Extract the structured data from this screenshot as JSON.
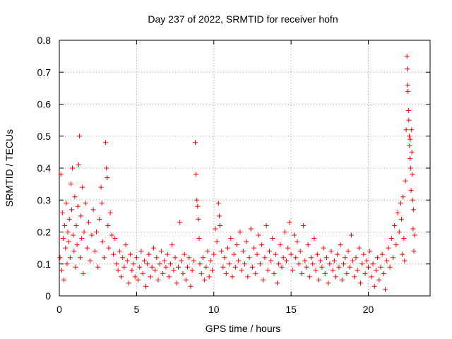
{
  "chart_data": {
    "type": "scatter",
    "title": "Day 237 of 2022, SRMTID for receiver hofn",
    "xlabel": "GPS time / hours",
    "ylabel": "SRMTID / TECUs",
    "xlim": [
      0,
      24
    ],
    "ylim": [
      0,
      0.8
    ],
    "xticks": [
      0,
      5,
      10,
      15,
      20
    ],
    "xtick_labels": [
      "0",
      "5",
      "10",
      "15",
      "20"
    ],
    "yticks": [
      0,
      0.1,
      0.2,
      0.3,
      0.4,
      0.5,
      0.6,
      0.7,
      0.8
    ],
    "ytick_labels": [
      "0",
      "0.1",
      "0.2",
      "0.3",
      "0.4",
      "0.5",
      "0.6",
      "0.7",
      "0.8"
    ],
    "grid": true,
    "marker": "+",
    "marker_color": "#ff0000",
    "series": [
      {
        "name": "SRMTID",
        "points": [
          [
            0.05,
            0.12
          ],
          [
            0.1,
            0.38
          ],
          [
            0.15,
            0.08
          ],
          [
            0.2,
            0.26
          ],
          [
            0.25,
            0.18
          ],
          [
            0.3,
            0.05
          ],
          [
            0.35,
            0.22
          ],
          [
            0.4,
            0.15
          ],
          [
            0.45,
            0.29
          ],
          [
            0.5,
            0.1
          ],
          [
            0.55,
            0.2
          ],
          [
            0.6,
            0.17
          ],
          [
            0.65,
            0.24
          ],
          [
            0.7,
            0.12
          ],
          [
            0.75,
            0.35
          ],
          [
            0.8,
            0.27
          ],
          [
            0.85,
            0.4
          ],
          [
            0.9,
            0.19
          ],
          [
            0.95,
            0.14
          ],
          [
            1.0,
            0.31
          ],
          [
            1.05,
            0.09
          ],
          [
            1.1,
            0.22
          ],
          [
            1.15,
            0.16
          ],
          [
            1.2,
            0.28
          ],
          [
            1.25,
            0.41
          ],
          [
            1.3,
            0.5
          ],
          [
            1.35,
            0.12
          ],
          [
            1.4,
            0.25
          ],
          [
            1.45,
            0.18
          ],
          [
            1.5,
            0.34
          ],
          [
            1.55,
            0.07
          ],
          [
            1.6,
            0.2
          ],
          [
            1.7,
            0.29
          ],
          [
            1.8,
            0.15
          ],
          [
            1.9,
            0.23
          ],
          [
            2.0,
            0.11
          ],
          [
            2.1,
            0.19
          ],
          [
            2.2,
            0.27
          ],
          [
            2.3,
            0.14
          ],
          [
            2.4,
            0.2
          ],
          [
            2.5,
            0.09
          ],
          [
            2.6,
            0.24
          ],
          [
            2.7,
            0.34
          ],
          [
            2.75,
            0.29
          ],
          [
            2.8,
            0.17
          ],
          [
            2.9,
            0.12
          ],
          [
            3.0,
            0.48
          ],
          [
            3.05,
            0.4
          ],
          [
            3.1,
            0.37
          ],
          [
            3.15,
            0.22
          ],
          [
            3.2,
            0.15
          ],
          [
            3.3,
            0.26
          ],
          [
            3.4,
            0.19
          ],
          [
            3.5,
            0.13
          ],
          [
            3.6,
            0.18
          ],
          [
            3.7,
            0.1
          ],
          [
            3.8,
            0.08
          ],
          [
            3.9,
            0.14
          ],
          [
            4.0,
            0.06
          ],
          [
            4.1,
            0.12
          ],
          [
            4.2,
            0.09
          ],
          [
            4.3,
            0.16
          ],
          [
            4.4,
            0.11
          ],
          [
            4.5,
            0.04
          ],
          [
            4.6,
            0.13
          ],
          [
            4.7,
            0.08
          ],
          [
            4.8,
            0.1
          ],
          [
            4.9,
            0.06
          ],
          [
            5.0,
            0.12
          ],
          [
            5.1,
            0.05
          ],
          [
            5.2,
            0.09
          ],
          [
            5.3,
            0.14
          ],
          [
            5.4,
            0.07
          ],
          [
            5.5,
            0.11
          ],
          [
            5.6,
            0.03
          ],
          [
            5.7,
            0.1
          ],
          [
            5.8,
            0.13
          ],
          [
            5.9,
            0.06
          ],
          [
            6.0,
            0.09
          ],
          [
            6.1,
            0.15
          ],
          [
            6.2,
            0.08
          ],
          [
            6.3,
            0.12
          ],
          [
            6.4,
            0.05
          ],
          [
            6.5,
            0.1
          ],
          [
            6.6,
            0.14
          ],
          [
            6.7,
            0.07
          ],
          [
            6.8,
            0.11
          ],
          [
            6.9,
            0.09
          ],
          [
            7.0,
            0.13
          ],
          [
            7.1,
            0.06
          ],
          [
            7.2,
            0.1
          ],
          [
            7.3,
            0.16
          ],
          [
            7.4,
            0.08
          ],
          [
            7.5,
            0.12
          ],
          [
            7.6,
            0.04
          ],
          [
            7.7,
            0.09
          ],
          [
            7.8,
            0.23
          ],
          [
            7.9,
            0.11
          ],
          [
            8.0,
            0.07
          ],
          [
            8.1,
            0.13
          ],
          [
            8.2,
            0.05
          ],
          [
            8.3,
            0.09
          ],
          [
            8.4,
            0.12
          ],
          [
            8.5,
            0.03
          ],
          [
            8.6,
            0.08
          ],
          [
            8.7,
            0.11
          ],
          [
            8.8,
            0.48
          ],
          [
            8.85,
            0.38
          ],
          [
            8.9,
            0.3
          ],
          [
            8.95,
            0.28
          ],
          [
            9.0,
            0.24
          ],
          [
            9.05,
            0.18
          ],
          [
            9.1,
            0.1
          ],
          [
            9.2,
            0.07
          ],
          [
            9.3,
            0.12
          ],
          [
            9.4,
            0.05
          ],
          [
            9.5,
            0.09
          ],
          [
            9.6,
            0.14
          ],
          [
            9.7,
            0.06
          ],
          [
            9.8,
            0.11
          ],
          [
            9.9,
            0.08
          ],
          [
            10.0,
            0.13
          ],
          [
            10.1,
            0.21
          ],
          [
            10.2,
            0.17
          ],
          [
            10.3,
            0.29
          ],
          [
            10.35,
            0.25
          ],
          [
            10.4,
            0.22
          ],
          [
            10.5,
            0.14
          ],
          [
            10.6,
            0.09
          ],
          [
            10.7,
            0.12
          ],
          [
            10.8,
            0.07
          ],
          [
            10.9,
            0.15
          ],
          [
            11.0,
            0.1
          ],
          [
            11.1,
            0.18
          ],
          [
            11.2,
            0.06
          ],
          [
            11.3,
            0.13
          ],
          [
            11.4,
            0.09
          ],
          [
            11.5,
            0.16
          ],
          [
            11.6,
            0.11
          ],
          [
            11.7,
            0.2
          ],
          [
            11.8,
            0.08
          ],
          [
            11.9,
            0.14
          ],
          [
            12.0,
            0.1
          ],
          [
            12.1,
            0.17
          ],
          [
            12.2,
            0.06
          ],
          [
            12.3,
            0.12
          ],
          [
            12.4,
            0.21
          ],
          [
            12.5,
            0.09
          ],
          [
            12.6,
            0.15
          ],
          [
            12.7,
            0.07
          ],
          [
            12.8,
            0.13
          ],
          [
            12.9,
            0.19
          ],
          [
            13.0,
            0.1
          ],
          [
            13.1,
            0.16
          ],
          [
            13.2,
            0.05
          ],
          [
            13.3,
            0.12
          ],
          [
            13.4,
            0.22
          ],
          [
            13.5,
            0.08
          ],
          [
            13.6,
            0.14
          ],
          [
            13.7,
            0.11
          ],
          [
            13.8,
            0.18
          ],
          [
            13.9,
            0.07
          ],
          [
            14.0,
            0.13
          ],
          [
            14.1,
            0.04
          ],
          [
            14.2,
            0.1
          ],
          [
            14.3,
            0.16
          ],
          [
            14.4,
            0.09
          ],
          [
            14.5,
            0.12
          ],
          [
            14.6,
            0.2
          ],
          [
            14.7,
            0.11
          ],
          [
            14.8,
            0.15
          ],
          [
            14.9,
            0.23
          ],
          [
            15.0,
            0.13
          ],
          [
            15.1,
            0.08
          ],
          [
            15.2,
            0.19
          ],
          [
            15.3,
            0.12
          ],
          [
            15.4,
            0.17
          ],
          [
            15.5,
            0.1
          ],
          [
            15.6,
            0.14
          ],
          [
            15.7,
            0.07
          ],
          [
            15.8,
            0.22
          ],
          [
            15.9,
            0.11
          ],
          [
            16.0,
            0.09
          ],
          [
            16.1,
            0.16
          ],
          [
            16.2,
            0.06
          ],
          [
            16.3,
            0.12
          ],
          [
            16.4,
            0.1
          ],
          [
            16.5,
            0.18
          ],
          [
            16.6,
            0.08
          ],
          [
            16.7,
            0.13
          ],
          [
            16.8,
            0.05
          ],
          [
            16.9,
            0.11
          ],
          [
            17.0,
            0.09
          ],
          [
            17.1,
            0.15
          ],
          [
            17.2,
            0.07
          ],
          [
            17.3,
            0.12
          ],
          [
            17.4,
            0.04
          ],
          [
            17.5,
            0.1
          ],
          [
            17.6,
            0.14
          ],
          [
            17.7,
            0.08
          ],
          [
            17.8,
            0.11
          ],
          [
            17.9,
            0.06
          ],
          [
            18.0,
            0.13
          ],
          [
            18.1,
            0.09
          ],
          [
            18.2,
            0.16
          ],
          [
            18.3,
            0.05
          ],
          [
            18.4,
            0.1
          ],
          [
            18.5,
            0.12
          ],
          [
            18.6,
            0.07
          ],
          [
            18.7,
            0.14
          ],
          [
            18.8,
            0.09
          ],
          [
            18.9,
            0.19
          ],
          [
            19.0,
            0.11
          ],
          [
            19.1,
            0.06
          ],
          [
            19.2,
            0.12
          ],
          [
            19.3,
            0.08
          ],
          [
            19.4,
            0.15
          ],
          [
            19.5,
            0.04
          ],
          [
            19.6,
            0.1
          ],
          [
            19.7,
            0.13
          ],
          [
            19.8,
            0.07
          ],
          [
            19.9,
            0.11
          ],
          [
            20.0,
            0.09
          ],
          [
            20.1,
            0.14
          ],
          [
            20.2,
            0.06
          ],
          [
            20.3,
            0.1
          ],
          [
            20.4,
            0.03
          ],
          [
            20.5,
            0.08
          ],
          [
            20.6,
            0.12
          ],
          [
            20.7,
            0.05
          ],
          [
            20.8,
            0.09
          ],
          [
            20.9,
            0.13
          ],
          [
            21.0,
            0.07
          ],
          [
            21.1,
            0.02
          ],
          [
            21.2,
            0.11
          ],
          [
            21.3,
            0.15
          ],
          [
            21.4,
            0.09
          ],
          [
            21.5,
            0.18
          ],
          [
            21.6,
            0.12
          ],
          [
            21.7,
            0.22
          ],
          [
            21.8,
            0.16
          ],
          [
            21.9,
            0.26
          ],
          [
            22.0,
            0.2
          ],
          [
            22.1,
            0.29
          ],
          [
            22.15,
            0.24
          ],
          [
            22.2,
            0.13
          ],
          [
            22.25,
            0.31
          ],
          [
            22.3,
            0.18
          ],
          [
            22.35,
            0.11
          ],
          [
            22.4,
            0.36
          ],
          [
            22.45,
            0.52
          ],
          [
            22.5,
            0.75
          ],
          [
            22.52,
            0.71
          ],
          [
            22.55,
            0.66
          ],
          [
            22.57,
            0.64
          ],
          [
            22.6,
            0.58
          ],
          [
            22.62,
            0.55
          ],
          [
            22.65,
            0.5
          ],
          [
            22.67,
            0.47
          ],
          [
            22.7,
            0.43
          ],
          [
            22.72,
            0.49
          ],
          [
            22.75,
            0.4
          ],
          [
            22.77,
            0.33
          ],
          [
            22.8,
            0.52
          ],
          [
            22.82,
            0.45
          ],
          [
            22.85,
            0.38
          ],
          [
            22.87,
            0.3
          ],
          [
            22.9,
            0.21
          ],
          [
            22.92,
            0.27
          ],
          [
            22.95,
            0.14
          ],
          [
            23.0,
            0.19
          ]
        ]
      }
    ]
  }
}
